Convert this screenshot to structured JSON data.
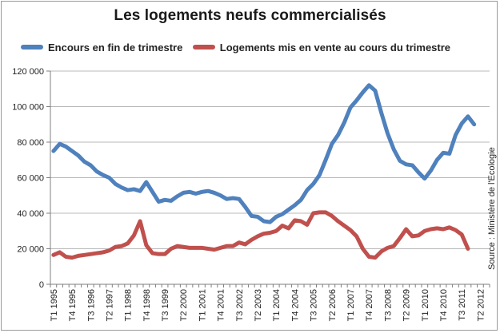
{
  "title": "Les logements neufs commercialisés",
  "source": "Source : Ministère de l'Ecologie",
  "colors": {
    "series1": "#4f81bd",
    "series2": "#c0504d",
    "grid": "#b8b8b8",
    "axis": "#7f7f7f"
  },
  "chart_data": {
    "type": "line",
    "title": "Les logements neufs commercialisés",
    "xlabel": "",
    "ylabel": "",
    "ylim": [
      0,
      120000
    ],
    "yticks": [
      0,
      20000,
      40000,
      60000,
      80000,
      100000,
      120000
    ],
    "ytick_labels": [
      "0",
      "20 000",
      "40 000",
      "60 000",
      "80 000",
      "100 000",
      "120 000"
    ],
    "grid": true,
    "legend": "top",
    "x": [
      "T1 1995",
      "T2 1995",
      "T3 1995",
      "T4 1995",
      "T1 1996",
      "T2 1996",
      "T3 1996",
      "T4 1996",
      "T1 1997",
      "T2 1997",
      "T3 1997",
      "T4 1997",
      "T1 1998",
      "T2 1998",
      "T3 1998",
      "T4 1998",
      "T1 1999",
      "T2 1999",
      "T3 1999",
      "T4 1999",
      "T1 2000",
      "T2 2000",
      "T3 2000",
      "T4 2000",
      "T1 2001",
      "T2 2001",
      "T3 2001",
      "T4 2001",
      "T1 2002",
      "T2 2002",
      "T3 2002",
      "T4 2002",
      "T1 2003",
      "T2 2003",
      "T3 2003",
      "T4 2003",
      "T1 2004",
      "T2 2004",
      "T3 2004",
      "T4 2004",
      "T1 2005",
      "T2 2005",
      "T3 2005",
      "T4 2005",
      "T1 2006",
      "T2 2006",
      "T3 2006",
      "T4 2006",
      "T1 2007",
      "T2 2007",
      "T3 2007",
      "T4 2007",
      "T1 2008",
      "T2 2008",
      "T3 2008",
      "T4 2008",
      "T1 2009",
      "T2 2009",
      "T3 2009",
      "T4 2009",
      "T1 2010",
      "T2 2010",
      "T3 2010",
      "T4 2010",
      "T1 2011",
      "T2 2011",
      "T3 2011",
      "T4 2011",
      "T1 2012",
      "T2 2012",
      "T3 2012"
    ],
    "xtick_labels": [
      "T1 1995",
      "T4 1995",
      "T3 1996",
      "T2 1997",
      "T1 1998",
      "T4 1998",
      "T3 1999",
      "T2 2000",
      "T1 2001",
      "T4 2001",
      "T3 2002",
      "T2 2003",
      "T1 2004",
      "T4 2004",
      "T3 2005",
      "T2 2006",
      "T1 2007",
      "T4 2007",
      "T3 2008",
      "T2 2009",
      "T1 2010",
      "T4 2010",
      "T3 2011",
      "T2 2012"
    ],
    "series": [
      {
        "name": "Encours en fin de trimestre",
        "color": "#4f81bd",
        "values": [
          75000,
          79000,
          77500,
          75000,
          72500,
          69000,
          67000,
          63500,
          61500,
          60000,
          56500,
          54500,
          53000,
          53500,
          52500,
          57500,
          52000,
          46500,
          47500,
          47000,
          49500,
          51500,
          52000,
          51000,
          52000,
          52500,
          51500,
          50000,
          48000,
          48500,
          48000,
          43500,
          38500,
          38000,
          35500,
          35000,
          38000,
          39500,
          42000,
          44500,
          47500,
          53000,
          56500,
          61500,
          70000,
          79000,
          84000,
          91000,
          99500,
          103500,
          108000,
          112000,
          109000,
          96500,
          85000,
          76000,
          69500,
          67500,
          67000,
          63000,
          59500,
          64000,
          70000,
          74000,
          73500,
          84000,
          90500,
          94500,
          90000,
          null,
          null
        ]
      },
      {
        "name": "Logements mis en vente au cours du trimestre",
        "color": "#c0504d",
        "values": [
          16500,
          18000,
          15500,
          15000,
          16000,
          16500,
          17000,
          17500,
          18000,
          19000,
          21000,
          21500,
          23000,
          27500,
          35500,
          22000,
          17500,
          17000,
          17000,
          20000,
          21500,
          21000,
          20500,
          20500,
          20500,
          20000,
          19500,
          20500,
          21500,
          21500,
          23500,
          22500,
          25000,
          27000,
          28500,
          29000,
          30000,
          33000,
          31500,
          36000,
          35500,
          33500,
          40000,
          40500,
          40500,
          38500,
          35500,
          33000,
          30500,
          27000,
          20000,
          15500,
          15000,
          18500,
          20500,
          21500,
          26000,
          31000,
          27000,
          27500,
          30000,
          31000,
          31500,
          31000,
          32000,
          30500,
          28000,
          20000,
          null,
          null,
          null
        ]
      }
    ]
  }
}
